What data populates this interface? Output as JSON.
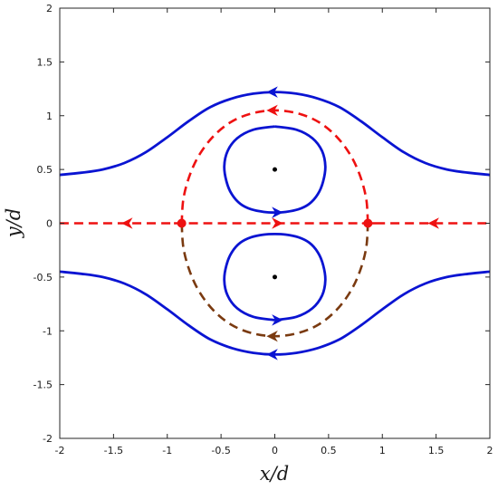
{
  "chart_data": {
    "type": "line",
    "title": "",
    "xlabel": "x/d",
    "ylabel": "y/d",
    "xlim": [
      -2,
      2
    ],
    "ylim": [
      -2,
      2
    ],
    "grid": false,
    "legend": "none",
    "xticks": [
      "-2",
      "-1.5",
      "-1",
      "-0.5",
      "0",
      "0.5",
      "1",
      "1.5",
      "2"
    ],
    "yticks": [
      "-2",
      "-1.5",
      "-1",
      "-0.5",
      "0",
      "0.5",
      "1",
      "1.5",
      "2"
    ],
    "colors": {
      "blue": "#0a14d2",
      "red": "#ee1111",
      "brown": "#7a3a10",
      "point": "#000000"
    },
    "series": [
      {
        "style": "solid",
        "color": "blue",
        "x": [
          -2,
          -1.8,
          -1.6,
          -1.4,
          -1.2,
          -1.0,
          -0.8,
          -0.6,
          -0.4,
          -0.2,
          0,
          0.2,
          0.4,
          0.6,
          0.8,
          1.0,
          1.2,
          1.4,
          1.6,
          1.8,
          2
        ],
        "y": [
          0.45,
          0.47,
          0.5,
          0.56,
          0.66,
          0.8,
          0.95,
          1.08,
          1.16,
          1.205,
          1.22,
          1.205,
          1.16,
          1.08,
          0.95,
          0.8,
          0.66,
          0.56,
          0.5,
          0.47,
          0.45
        ],
        "arrows": [
          {
            "x": 0.0,
            "y": 1.22,
            "dir": "left"
          }
        ]
      },
      {
        "style": "solid",
        "color": "blue",
        "x": [
          -2,
          -1.8,
          -1.6,
          -1.4,
          -1.2,
          -1.0,
          -0.8,
          -0.6,
          -0.4,
          -0.2,
          0,
          0.2,
          0.4,
          0.6,
          0.8,
          1.0,
          1.2,
          1.4,
          1.6,
          1.8,
          2
        ],
        "y": [
          -0.45,
          -0.47,
          -0.5,
          -0.56,
          -0.66,
          -0.8,
          -0.95,
          -1.08,
          -1.16,
          -1.205,
          -1.22,
          -1.205,
          -1.16,
          -1.08,
          -0.95,
          -0.8,
          -0.66,
          -0.56,
          -0.5,
          -0.47,
          -0.45
        ],
        "arrows": [
          {
            "x": 0.0,
            "y": -1.22,
            "dir": "left"
          }
        ]
      },
      {
        "style": "solid",
        "color": "blue",
        "x": [
          0.0,
          -0.2,
          -0.35,
          -0.44,
          -0.47,
          -0.45,
          -0.4,
          -0.32,
          -0.22,
          -0.1,
          0.0,
          0.1,
          0.22,
          0.32,
          0.4,
          0.45,
          0.47,
          0.44,
          0.35,
          0.2,
          0.0
        ],
        "y": [
          0.9,
          0.87,
          0.79,
          0.67,
          0.53,
          0.39,
          0.27,
          0.18,
          0.13,
          0.105,
          0.1,
          0.105,
          0.13,
          0.18,
          0.27,
          0.39,
          0.53,
          0.67,
          0.79,
          0.87,
          0.9
        ],
        "arrows": [
          {
            "x": 0.0,
            "y": 0.1,
            "dir": "right"
          }
        ]
      },
      {
        "style": "solid",
        "color": "blue",
        "x": [
          0.0,
          -0.2,
          -0.35,
          -0.44,
          -0.47,
          -0.45,
          -0.4,
          -0.32,
          -0.22,
          -0.1,
          0.0,
          0.1,
          0.22,
          0.32,
          0.4,
          0.45,
          0.47,
          0.44,
          0.35,
          0.2,
          0.0
        ],
        "y": [
          -0.9,
          -0.87,
          -0.79,
          -0.67,
          -0.53,
          -0.39,
          -0.27,
          -0.18,
          -0.13,
          -0.105,
          -0.1,
          -0.105,
          -0.13,
          -0.18,
          -0.27,
          -0.39,
          -0.53,
          -0.67,
          -0.79,
          -0.87,
          -0.9
        ],
        "arrows": [
          {
            "x": 0.0,
            "y": -0.9,
            "dir": "right"
          }
        ]
      },
      {
        "style": "dashed",
        "color": "red",
        "x": [
          -2,
          -0.866,
          -0.866,
          0.866,
          0.866,
          2
        ],
        "y": [
          0,
          0,
          0,
          0,
          0,
          0
        ],
        "arrows": [
          {
            "x": -1.35,
            "y": 0,
            "dir": "left"
          },
          {
            "x": 0.0,
            "y": 0,
            "dir": "right"
          },
          {
            "x": 1.5,
            "y": 0,
            "dir": "left"
          }
        ]
      },
      {
        "style": "dashed",
        "color": "red",
        "x": [
          0.866,
          0.85,
          0.79,
          0.7,
          0.57,
          0.41,
          0.22,
          0.0,
          -0.22,
          -0.41,
          -0.57,
          -0.7,
          -0.79,
          -0.85,
          -0.866
        ],
        "y": [
          0.0,
          0.23,
          0.45,
          0.64,
          0.81,
          0.94,
          1.02,
          1.05,
          1.02,
          0.94,
          0.81,
          0.64,
          0.45,
          0.23,
          0.0
        ],
        "arrows": [
          {
            "x": 0.0,
            "y": 1.05,
            "dir": "left"
          }
        ]
      },
      {
        "style": "dashed",
        "color": "brown",
        "x": [
          -0.866,
          -0.85,
          -0.79,
          -0.7,
          -0.57,
          -0.41,
          -0.22,
          0.0,
          0.22,
          0.41,
          0.57,
          0.7,
          0.79,
          0.85,
          0.866
        ],
        "y": [
          0.0,
          -0.23,
          -0.45,
          -0.64,
          -0.81,
          -0.94,
          -1.02,
          -1.05,
          -1.02,
          -0.94,
          -0.81,
          -0.64,
          -0.45,
          -0.23,
          0.0
        ],
        "arrows": [
          {
            "x": 0.0,
            "y": -1.05,
            "dir": "left"
          }
        ]
      }
    ],
    "points": [
      {
        "x": -0.866,
        "y": 0,
        "color": "red",
        "size": "large"
      },
      {
        "x": 0.866,
        "y": 0,
        "color": "red",
        "size": "large"
      },
      {
        "x": 0,
        "y": 0.5,
        "color": "point",
        "size": "small"
      },
      {
        "x": 0,
        "y": -0.5,
        "color": "point",
        "size": "small"
      }
    ]
  }
}
